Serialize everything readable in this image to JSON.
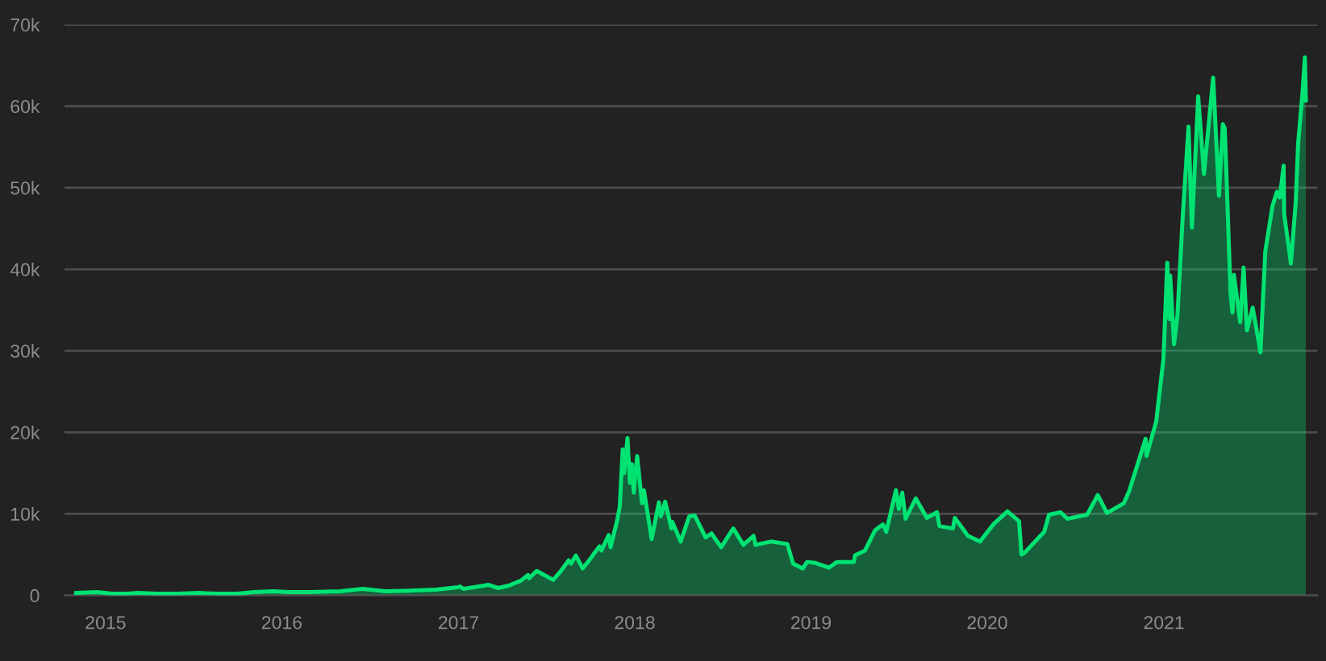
{
  "chart_data": {
    "type": "area",
    "x": [
      "2014-11-01",
      "2014-12-15",
      "2015-01-14",
      "2015-02-15",
      "2015-03-10",
      "2015-04-15",
      "2015-06-01",
      "2015-07-12",
      "2015-08-24",
      "2015-10-01",
      "2015-11-04",
      "2015-12-15",
      "2016-01-15",
      "2016-03-01",
      "2016-05-01",
      "2016-06-17",
      "2016-08-02",
      "2016-10-01",
      "2016-11-15",
      "2016-12-31",
      "2017-01-04",
      "2017-01-11",
      "2017-02-23",
      "2017-03-03",
      "2017-03-24",
      "2017-04-15",
      "2017-05-10",
      "2017-05-25",
      "2017-05-27",
      "2017-06-12",
      "2017-07-16",
      "2017-07-31",
      "2017-08-17",
      "2017-08-22",
      "2017-09-01",
      "2017-09-15",
      "2017-09-30",
      "2017-10-12",
      "2017-10-20",
      "2017-10-24",
      "2017-11-08",
      "2017-11-12",
      "2017-11-26",
      "2017-12-01",
      "2017-12-07",
      "2017-12-10",
      "2017-12-17",
      "2017-12-22",
      "2017-12-26",
      "2017-12-30",
      "2018-01-06",
      "2018-01-16",
      "2018-01-20",
      "2018-02-05",
      "2018-02-20",
      "2018-02-24",
      "2018-03-05",
      "2018-03-18",
      "2018-03-20",
      "2018-04-06",
      "2018-04-24",
      "2018-05-05",
      "2018-05-28",
      "2018-06-09",
      "2018-06-29",
      "2018-07-24",
      "2018-08-14",
      "2018-09-04",
      "2018-09-08",
      "2018-10-10",
      "2018-11-13",
      "2018-11-25",
      "2018-12-15",
      "2018-12-24",
      "2019-01-09",
      "2019-02-07",
      "2019-02-24",
      "2019-03-31",
      "2019-04-02",
      "2019-04-23",
      "2019-05-14",
      "2019-05-30",
      "2019-06-06",
      "2019-06-26",
      "2019-07-02",
      "2019-07-09",
      "2019-07-16",
      "2019-08-06",
      "2019-08-29",
      "2019-09-19",
      "2019-09-24",
      "2019-10-22",
      "2019-10-26",
      "2019-11-22",
      "2019-12-17",
      "2020-01-15",
      "2020-02-12",
      "2020-03-07",
      "2020-03-12",
      "2020-03-18",
      "2020-04-28",
      "2020-05-08",
      "2020-06-01",
      "2020-06-15",
      "2020-07-26",
      "2020-08-17",
      "2020-09-05",
      "2020-10-10",
      "2020-10-21",
      "2020-11-05",
      "2020-11-24",
      "2020-11-26",
      "2020-12-16",
      "2020-12-31",
      "2021-01-08",
      "2021-01-12",
      "2021-01-14",
      "2021-01-22",
      "2021-01-29",
      "2021-02-09",
      "2021-02-21",
      "2021-02-28",
      "2021-03-13",
      "2021-03-25",
      "2021-04-13",
      "2021-04-25",
      "2021-05-03",
      "2021-05-07",
      "2021-05-12",
      "2021-05-19",
      "2021-05-23",
      "2021-05-26",
      "2021-06-08",
      "2021-06-15",
      "2021-06-22",
      "2021-07-04",
      "2021-07-20",
      "2021-07-30",
      "2021-08-14",
      "2021-08-23",
      "2021-08-29",
      "2021-09-06",
      "2021-09-07",
      "2021-09-21",
      "2021-10-01",
      "2021-10-06",
      "2021-10-15",
      "2021-10-20",
      "2021-10-22"
    ],
    "series": [
      {
        "color": "#00e272",
        "values": [
          300,
          400,
          200,
          200,
          300,
          200,
          200,
          300,
          200,
          200,
          400,
          500,
          400,
          400,
          500,
          800,
          500,
          600,
          700,
          1000,
          1100,
          800,
          1200,
          1300,
          900,
          1200,
          1800,
          2500,
          2100,
          3000,
          1900,
          2900,
          4300,
          3900,
          4900,
          3300,
          4400,
          5400,
          6000,
          5500,
          7400,
          5900,
          9300,
          10900,
          17900,
          15000,
          19300,
          13800,
          16100,
          12600,
          17100,
          11300,
          12900,
          6900,
          11400,
          9700,
          11500,
          8200,
          9000,
          6600,
          9700,
          9800,
          7100,
          7600,
          5900,
          8200,
          6200,
          7300,
          6200,
          6600,
          6300,
          3900,
          3300,
          4100,
          4000,
          3400,
          4100,
          4100,
          4900,
          5500,
          8000,
          8700,
          7800,
          12900,
          10600,
          12600,
          9400,
          11900,
          9500,
          10200,
          8500,
          8200,
          9500,
          7300,
          6600,
          8800,
          10300,
          9100,
          5000,
          5200,
          7800,
          9900,
          10200,
          9400,
          9900,
          12300,
          10100,
          11300,
          12800,
          15600,
          19200,
          17100,
          21300,
          29000,
          40800,
          33900,
          39200,
          30800,
          34300,
          46500,
          57500,
          45100,
          61200,
          51700,
          63500,
          49000,
          57800,
          57300,
          49100,
          37000,
          34700,
          39300,
          33500,
          40200,
          32500,
          35300,
          29800,
          42200,
          47800,
          49500,
          48800,
          52700,
          46800,
          40700,
          48200,
          55400,
          61600,
          66000,
          60700
        ]
      }
    ],
    "xlim": [
      "2014-10-08",
      "2021-11-15"
    ],
    "xticks": [
      "2015",
      "2016",
      "2017",
      "2018",
      "2019",
      "2020",
      "2021"
    ],
    "ylim": [
      0,
      70000
    ],
    "yticks": [
      0,
      {
        "value": 10000,
        "label": "10k"
      },
      {
        "value": 20000,
        "label": "20k"
      },
      {
        "value": 30000,
        "label": "30k"
      },
      {
        "value": 40000,
        "label": "40k"
      },
      {
        "value": 50000,
        "label": "50k"
      },
      {
        "value": 60000,
        "label": "60k"
      },
      {
        "value": 70000,
        "label": "70k"
      }
    ],
    "grid": "y"
  }
}
